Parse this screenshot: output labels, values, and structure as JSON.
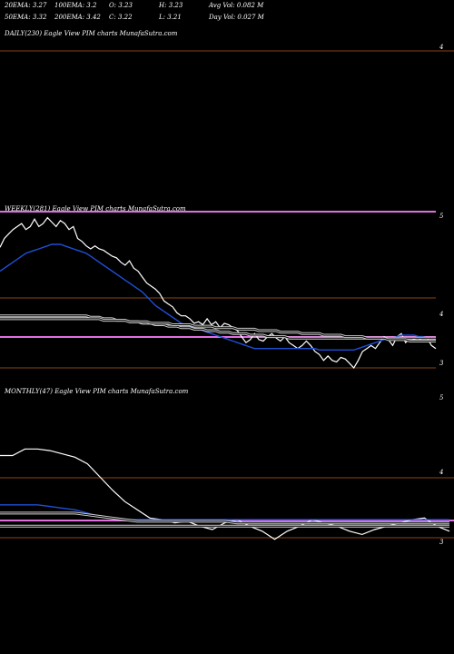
{
  "header": {
    "cells": [
      [
        "20EMA: 3.27",
        "100EMA: 3.2",
        "O: 3.23",
        "H: 3.23",
        "Avg Vol: 0.082  M"
      ],
      [
        "50EMA: 3.32",
        "200EMA: 3.42",
        "C: 3.22",
        "L: 3.21",
        "Day Vol: 0.027  M"
      ]
    ]
  },
  "colors": {
    "background": "#000000",
    "price": "#ffffff",
    "ema_fast": "#1e4fd6",
    "ema_slow": "#cfcfcf",
    "ema_long": "#c9c9c9",
    "magenta": "#e070e0",
    "brown": "#8b4513"
  },
  "chart_data": [
    {
      "type": "line",
      "title": "DAILY(230) Eagle  View  PIM charts MunafaSutra.com",
      "y_ticks": [
        "4"
      ],
      "series": []
    },
    {
      "type": "line",
      "title": "WEEKLY(281) Eagle  View  PIM charts MunafaSutra.com",
      "y_ticks": [
        "5",
        "4",
        "3"
      ],
      "series": [
        {
          "name": "price",
          "color": "#ffffff",
          "values": [
            3.96,
            4.02,
            4.05,
            4.08,
            4.1,
            4.12,
            4.08,
            4.1,
            4.15,
            4.1,
            4.12,
            4.16,
            4.13,
            4.1,
            4.14,
            4.12,
            4.08,
            4.1,
            4.02,
            4.0,
            3.97,
            3.95,
            3.97,
            3.95,
            3.94,
            3.92,
            3.9,
            3.89,
            3.86,
            3.84,
            3.87,
            3.82,
            3.8,
            3.76,
            3.72,
            3.7,
            3.68,
            3.65,
            3.6,
            3.58,
            3.56,
            3.52,
            3.5,
            3.5,
            3.48,
            3.45,
            3.46,
            3.44,
            3.48,
            3.44,
            3.46,
            3.42,
            3.45,
            3.44,
            3.42,
            3.4,
            3.36,
            3.32,
            3.34,
            3.38,
            3.34,
            3.33,
            3.36,
            3.38,
            3.35,
            3.33,
            3.36,
            3.32,
            3.3,
            3.28,
            3.3,
            3.33,
            3.3,
            3.26,
            3.24,
            3.2,
            3.23,
            3.2,
            3.19,
            3.22,
            3.21,
            3.18,
            3.15,
            3.2,
            3.26,
            3.28,
            3.3,
            3.28,
            3.32,
            3.36,
            3.34,
            3.3,
            3.36,
            3.38,
            3.32,
            3.35,
            3.34,
            3.33,
            3.36,
            3.35,
            3.3,
            3.28
          ]
        },
        {
          "name": "ema_fast",
          "color": "#1e4fd6",
          "values": [
            3.8,
            3.82,
            3.84,
            3.86,
            3.88,
            3.9,
            3.92,
            3.93,
            3.94,
            3.95,
            3.96,
            3.97,
            3.98,
            3.98,
            3.98,
            3.97,
            3.96,
            3.95,
            3.94,
            3.93,
            3.92,
            3.9,
            3.88,
            3.86,
            3.84,
            3.82,
            3.8,
            3.78,
            3.76,
            3.74,
            3.72,
            3.7,
            3.68,
            3.66,
            3.63,
            3.6,
            3.57,
            3.55,
            3.53,
            3.51,
            3.49,
            3.47,
            3.45,
            3.44,
            3.43,
            3.42,
            3.41,
            3.4,
            3.39,
            3.38,
            3.37,
            3.36,
            3.35,
            3.34,
            3.33,
            3.32,
            3.31,
            3.3,
            3.29,
            3.28,
            3.28,
            3.28,
            3.28,
            3.28,
            3.28,
            3.28,
            3.28,
            3.28,
            3.28,
            3.28,
            3.28,
            3.28,
            3.28,
            3.28,
            3.27,
            3.27,
            3.27,
            3.27,
            3.27,
            3.27,
            3.27,
            3.27,
            3.27,
            3.28,
            3.29,
            3.3,
            3.31,
            3.32,
            3.33,
            3.34,
            3.35,
            3.35,
            3.36,
            3.37,
            3.37,
            3.37,
            3.37,
            3.36,
            3.36,
            3.35,
            3.35,
            3.34
          ]
        },
        {
          "name": "ema_slow",
          "color": "#cfcfcf",
          "values": [
            3.5,
            3.5,
            3.5,
            3.5,
            3.5,
            3.5,
            3.5,
            3.5,
            3.5,
            3.5,
            3.5,
            3.5,
            3.5,
            3.5,
            3.5,
            3.5,
            3.5,
            3.5,
            3.5,
            3.5,
            3.5,
            3.49,
            3.49,
            3.49,
            3.48,
            3.48,
            3.48,
            3.47,
            3.47,
            3.47,
            3.46,
            3.46,
            3.46,
            3.45,
            3.45,
            3.45,
            3.44,
            3.44,
            3.44,
            3.43,
            3.43,
            3.43,
            3.42,
            3.42,
            3.42,
            3.41,
            3.41,
            3.41,
            3.4,
            3.4,
            3.4,
            3.39,
            3.39,
            3.39,
            3.38,
            3.38,
            3.38,
            3.38,
            3.37,
            3.37,
            3.37,
            3.37,
            3.36,
            3.36,
            3.36,
            3.36,
            3.36,
            3.35,
            3.35,
            3.35,
            3.35,
            3.35,
            3.35,
            3.35,
            3.35,
            3.35,
            3.35,
            3.35,
            3.35,
            3.35,
            3.35,
            3.35,
            3.35,
            3.35,
            3.35,
            3.35,
            3.35,
            3.35,
            3.35,
            3.35,
            3.35,
            3.35,
            3.35,
            3.35,
            3.35,
            3.35,
            3.35,
            3.35,
            3.35,
            3.35,
            3.35,
            3.35
          ]
        },
        {
          "name": "ema_long",
          "color": "#c9c9c9",
          "values": [
            3.48,
            3.48,
            3.48,
            3.48,
            3.48,
            3.48,
            3.48,
            3.48,
            3.48,
            3.48,
            3.48,
            3.48,
            3.48,
            3.48,
            3.48,
            3.48,
            3.48,
            3.48,
            3.48,
            3.48,
            3.48,
            3.48,
            3.48,
            3.48,
            3.47,
            3.47,
            3.47,
            3.47,
            3.47,
            3.47,
            3.46,
            3.46,
            3.46,
            3.46,
            3.46,
            3.45,
            3.45,
            3.45,
            3.45,
            3.45,
            3.44,
            3.44,
            3.44,
            3.44,
            3.44,
            3.43,
            3.43,
            3.43,
            3.43,
            3.43,
            3.42,
            3.42,
            3.42,
            3.42,
            3.42,
            3.41,
            3.41,
            3.41,
            3.41,
            3.41,
            3.4,
            3.4,
            3.4,
            3.4,
            3.4,
            3.39,
            3.39,
            3.39,
            3.39,
            3.39,
            3.38,
            3.38,
            3.38,
            3.38,
            3.38,
            3.37,
            3.37,
            3.37,
            3.37,
            3.37,
            3.36,
            3.36,
            3.36,
            3.36,
            3.36,
            3.35,
            3.35,
            3.35,
            3.35,
            3.35,
            3.34,
            3.34,
            3.34,
            3.34,
            3.34,
            3.33,
            3.33,
            3.33,
            3.33,
            3.33,
            3.33,
            3.33
          ]
        }
      ]
    },
    {
      "type": "line",
      "title": "MONTHLY(47) Eagle  View  PIM charts MunafaSutra.com",
      "y_ticks": [
        "5",
        "4",
        "3"
      ],
      "series": [
        {
          "name": "price",
          "color": "#ffffff",
          "values": [
            4.01,
            4.01,
            4.05,
            4.05,
            4.04,
            4.02,
            4.0,
            3.96,
            3.88,
            3.8,
            3.73,
            3.68,
            3.63,
            3.62,
            3.6,
            3.61,
            3.58,
            3.56,
            3.6,
            3.62,
            3.58,
            3.55,
            3.5,
            3.55,
            3.58,
            3.62,
            3.6,
            3.58,
            3.55,
            3.53,
            3.56,
            3.58,
            3.6,
            3.62,
            3.63,
            3.58,
            3.55
          ]
        },
        {
          "name": "ema_fast",
          "color": "#1e4fd6",
          "values": [
            3.71,
            3.71,
            3.71,
            3.71,
            3.7,
            3.69,
            3.68,
            3.66,
            3.64,
            3.63,
            3.62,
            3.62,
            3.62,
            3.62,
            3.62,
            3.62,
            3.62,
            3.62,
            3.62,
            3.62,
            3.62,
            3.62,
            3.62,
            3.62,
            3.62,
            3.62,
            3.62,
            3.62,
            3.62,
            3.62,
            3.62,
            3.62,
            3.62,
            3.62,
            3.62,
            3.62,
            3.62
          ]
        },
        {
          "name": "ema_slow",
          "color": "#cfcfcf",
          "values": [
            3.66,
            3.66,
            3.66,
            3.66,
            3.66,
            3.66,
            3.66,
            3.65,
            3.64,
            3.63,
            3.62,
            3.61,
            3.61,
            3.61,
            3.61,
            3.61,
            3.61,
            3.61,
            3.61,
            3.6,
            3.6,
            3.6,
            3.6,
            3.6,
            3.6,
            3.6,
            3.6,
            3.6,
            3.6,
            3.6,
            3.6,
            3.6,
            3.6,
            3.6,
            3.6,
            3.6,
            3.6
          ]
        },
        {
          "name": "ema_long",
          "color": "#c9c9c9",
          "values": [
            3.58,
            3.58,
            3.58,
            3.58,
            3.58,
            3.58,
            3.58,
            3.58,
            3.58,
            3.58,
            3.58,
            3.58,
            3.58,
            3.58,
            3.58,
            3.58,
            3.58,
            3.58,
            3.58,
            3.58,
            3.58,
            3.58,
            3.58,
            3.58,
            3.58,
            3.58,
            3.58,
            3.58,
            3.58,
            3.58,
            3.58,
            3.58,
            3.58,
            3.58,
            3.58,
            3.58,
            3.58
          ]
        }
      ]
    }
  ]
}
